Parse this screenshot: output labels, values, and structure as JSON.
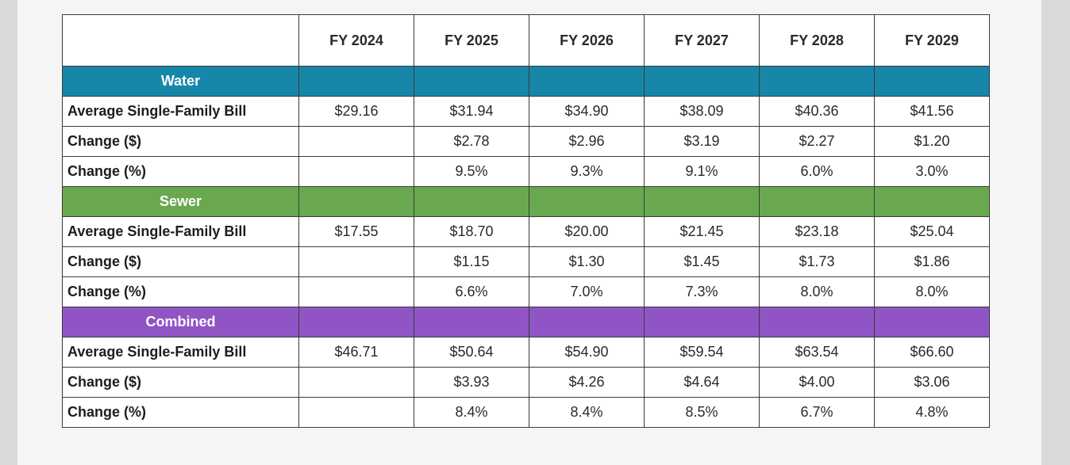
{
  "table": {
    "columns": [
      "FY 2024",
      "FY 2025",
      "FY 2026",
      "FY 2027",
      "FY 2028",
      "FY 2029"
    ],
    "sections": [
      {
        "name": "Water",
        "rows": [
          {
            "label": "Average Single-Family Bill",
            "values": [
              "$29.16",
              "$31.94",
              "$34.90",
              "$38.09",
              "$40.36",
              "$41.56"
            ]
          },
          {
            "label": "Change ($)",
            "values": [
              "",
              "$2.78",
              "$2.96",
              "$3.19",
              "$2.27",
              "$1.20"
            ]
          },
          {
            "label": "Change (%)",
            "values": [
              "",
              "9.5%",
              "9.3%",
              "9.1%",
              "6.0%",
              "3.0%"
            ]
          }
        ]
      },
      {
        "name": "Sewer",
        "rows": [
          {
            "label": "Average Single-Family Bill",
            "values": [
              "$17.55",
              "$18.70",
              "$20.00",
              "$21.45",
              "$23.18",
              "$25.04"
            ]
          },
          {
            "label": "Change ($)",
            "values": [
              "",
              "$1.15",
              "$1.30",
              "$1.45",
              "$1.73",
              "$1.86"
            ]
          },
          {
            "label": "Change (%)",
            "values": [
              "",
              "6.6%",
              "7.0%",
              "7.3%",
              "8.0%",
              "8.0%"
            ]
          }
        ]
      },
      {
        "name": "Combined",
        "rows": [
          {
            "label": "Average Single-Family Bill",
            "values": [
              "$46.71",
              "$50.64",
              "$54.90",
              "$59.54",
              "$63.54",
              "$66.60"
            ]
          },
          {
            "label": "Change ($)",
            "values": [
              "",
              "$3.93",
              "$4.26",
              "$4.64",
              "$4.00",
              "$3.06"
            ]
          },
          {
            "label": "Change (%)",
            "values": [
              "",
              "8.4%",
              "8.4%",
              "8.5%",
              "6.7%",
              "4.8%"
            ]
          }
        ]
      }
    ]
  },
  "colors": {
    "water": "#1687a8",
    "sewer": "#6aa84f",
    "combined": "#9054c4"
  }
}
